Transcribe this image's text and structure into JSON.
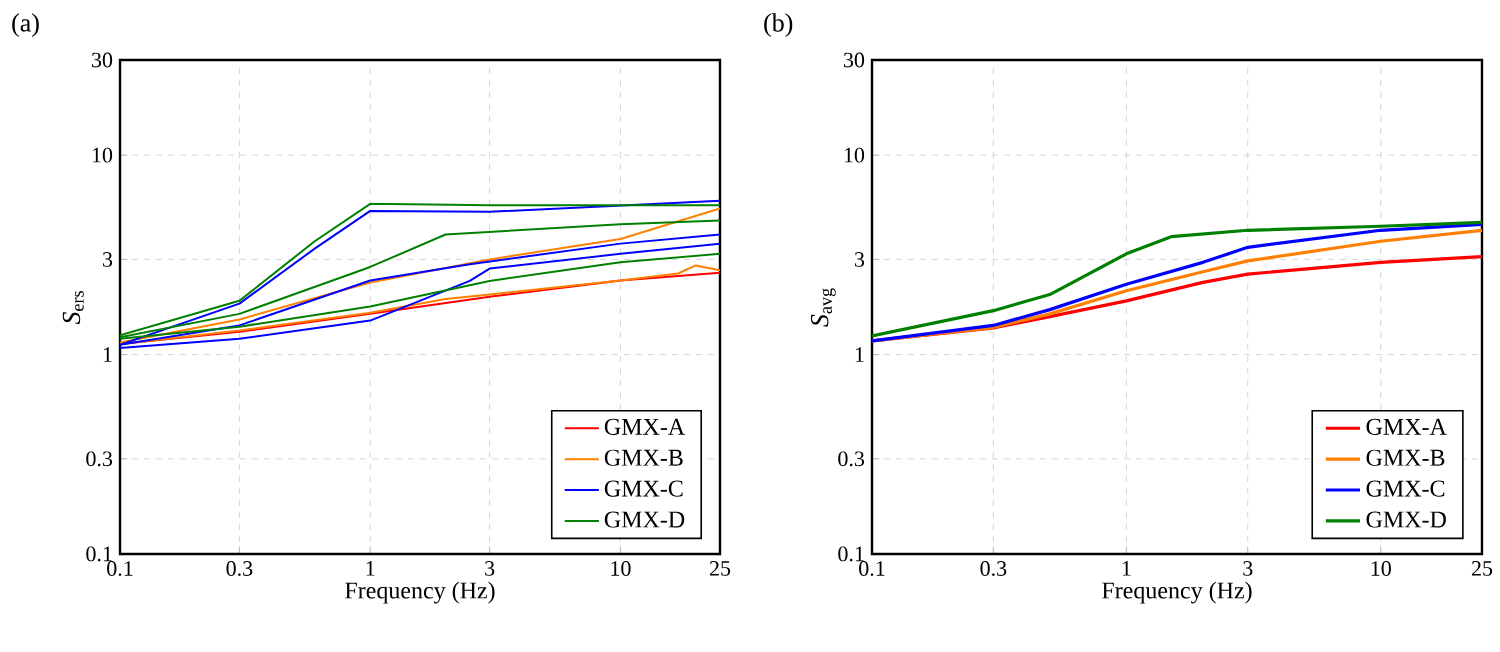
{
  "chart_data": [
    {
      "type": "line",
      "title": "(a)",
      "xlabel": "Frequency (Hz)",
      "ylabel": "*S*$_{ers}$",
      "log": "xy",
      "grid": true,
      "legend": "bottom right",
      "line_style": "solid",
      "xlim": [
        0.1,
        25
      ],
      "ylim": [
        0.1,
        30
      ],
      "xticks": [
        0.1,
        0.3,
        1,
        3,
        10,
        25
      ],
      "yticks": [
        0.1,
        0.3,
        1,
        3,
        10,
        30
      ],
      "series": [
        {
          "name": "GMX-A",
          "color": "#ff0000",
          "x": [
            0.1,
            0.3,
            1,
            3,
            10,
            25
          ],
          "values": [
            1.13,
            1.3,
            1.6,
            1.95,
            2.35,
            2.57
          ]
        },
        {
          "name": "GMX-B",
          "color": "#ff8000",
          "x": [
            0.1,
            0.3,
            1,
            2,
            3,
            10,
            17,
            20,
            25
          ],
          "values": [
            1.13,
            1.32,
            1.62,
            1.9,
            2.0,
            2.35,
            2.55,
            2.8,
            2.65
          ]
        },
        {
          "color": "#ff8000",
          "x": [
            0.1,
            0.3,
            1,
            3,
            10,
            25
          ],
          "values": [
            1.15,
            1.5,
            2.3,
            3.0,
            3.8,
            5.4
          ]
        },
        {
          "name": "GMX-C",
          "color": "#0000ff",
          "x": [
            0.1,
            0.3,
            0.6,
            1,
            3,
            25
          ],
          "values": [
            1.12,
            1.8,
            3.4,
            5.25,
            5.2,
            5.9
          ]
        },
        {
          "color": "#0000ff",
          "x": [
            0.1,
            0.3,
            1,
            2.5,
            10,
            25
          ],
          "values": [
            1.12,
            1.4,
            2.35,
            2.84,
            3.6,
            4.0
          ]
        },
        {
          "color": "#0000ff",
          "x": [
            0.1,
            0.3,
            1,
            2.5,
            3,
            10,
            25
          ],
          "values": [
            1.08,
            1.2,
            1.48,
            2.34,
            2.7,
            3.2,
            3.6
          ]
        },
        {
          "name": "GMX-D",
          "color": "#008000",
          "x": [
            0.1,
            0.3,
            0.6,
            1,
            3,
            25
          ],
          "values": [
            1.25,
            1.86,
            3.7,
            5.7,
            5.6,
            5.6
          ]
        },
        {
          "color": "#008000",
          "x": [
            0.1,
            0.3,
            1,
            2,
            10,
            25
          ],
          "values": [
            1.22,
            1.6,
            2.75,
            4.0,
            4.5,
            4.7
          ]
        },
        {
          "color": "#008000",
          "x": [
            0.1,
            0.3,
            1,
            3,
            10,
            25
          ],
          "values": [
            1.2,
            1.38,
            1.74,
            2.34,
            2.9,
            3.2
          ]
        }
      ]
    },
    {
      "type": "line",
      "title": "(b)",
      "xlabel": "Frequency (Hz)",
      "ylabel": "*S*$_{avg}$",
      "log": "xy",
      "grid": true,
      "legend": "bottom right",
      "line_style": "solid",
      "xlim": [
        0.1,
        25
      ],
      "ylim": [
        0.1,
        30
      ],
      "xticks": [
        0.1,
        0.3,
        1,
        3,
        10,
        25
      ],
      "yticks": [
        0.1,
        0.3,
        1,
        3,
        10,
        30
      ],
      "series": [
        {
          "name": "GMX-A",
          "color": "#ff0000",
          "x": [
            0.1,
            0.3,
            0.5,
            1,
            2,
            3,
            10,
            25
          ],
          "values": [
            1.17,
            1.36,
            1.55,
            1.86,
            2.3,
            2.53,
            2.9,
            3.1
          ]
        },
        {
          "name": "GMX-B",
          "color": "#ff8000",
          "x": [
            0.1,
            0.3,
            0.5,
            1,
            2,
            3,
            10,
            25
          ],
          "values": [
            1.17,
            1.37,
            1.6,
            2.09,
            2.6,
            2.95,
            3.7,
            4.2
          ]
        },
        {
          "name": "GMX-C",
          "color": "#0000ff",
          "x": [
            0.1,
            0.3,
            0.5,
            1,
            2,
            3,
            10,
            25
          ],
          "values": [
            1.17,
            1.4,
            1.68,
            2.25,
            2.9,
            3.45,
            4.2,
            4.5
          ]
        },
        {
          "name": "GMX-D",
          "color": "#008000",
          "x": [
            0.1,
            0.3,
            0.5,
            1,
            1.5,
            3,
            10,
            25
          ],
          "values": [
            1.24,
            1.66,
            2.0,
            3.2,
            3.9,
            4.2,
            4.4,
            4.6
          ]
        }
      ]
    }
  ]
}
